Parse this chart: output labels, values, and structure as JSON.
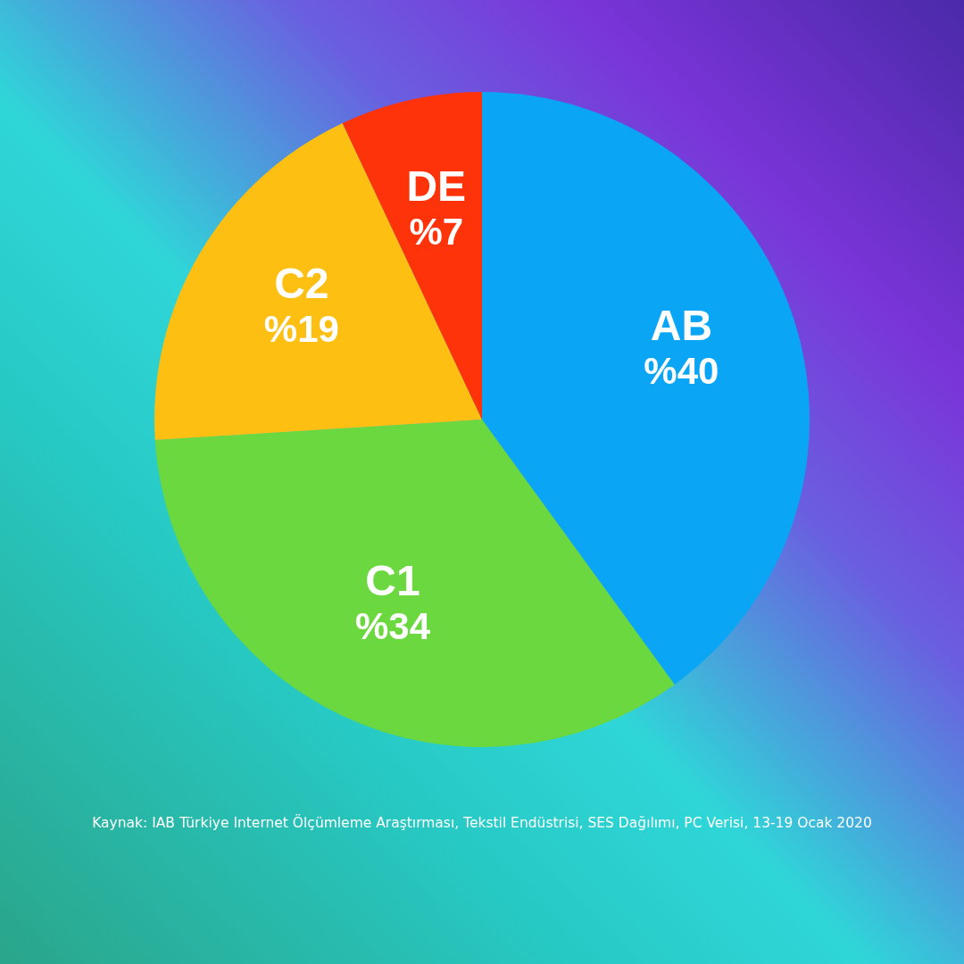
{
  "chart_data": {
    "type": "pie",
    "categories": [
      "AB",
      "C1",
      "C2",
      "DE"
    ],
    "values": [
      40,
      34,
      19,
      7
    ],
    "colors": [
      "#0aa6f5",
      "#6ad83e",
      "#fdbf12",
      "#ff330a"
    ],
    "value_labels": [
      "%40",
      "%34",
      "%19",
      "%7"
    ],
    "annotations": [
      "Kaynak: IAB Türkiye Internet Ölçümleme Araştırması, Tekstil Endüstrisi, SES Dağılımı, PC Verisi, 13-19 Ocak 2020"
    ]
  }
}
